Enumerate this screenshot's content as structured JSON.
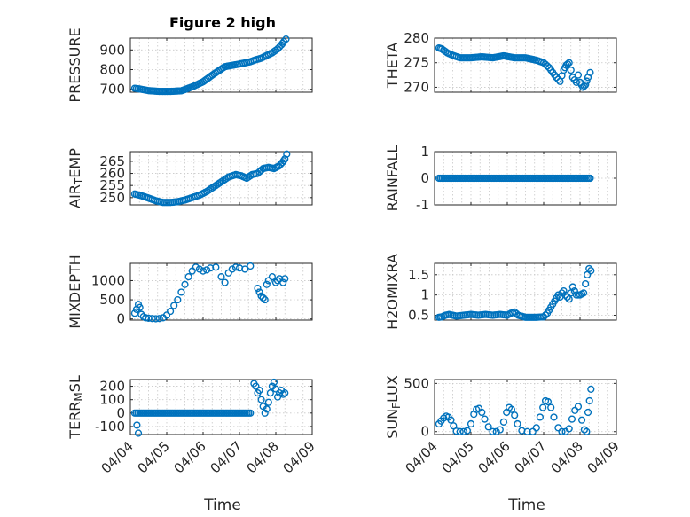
{
  "figure_title": "Figure 2 high",
  "x_axis_label": "Time",
  "x_tick_labels": [
    "04/04",
    "04/05",
    "04/06",
    "04/07",
    "04/08",
    "04/09"
  ],
  "marker_color": "#0072bd",
  "chart_data": [
    {
      "type": "scatter",
      "id": "pressure",
      "title": "Figure 2 high",
      "ylabel": "PRESSURE",
      "xlabel": "Time",
      "xlim": [
        0,
        5
      ],
      "ylim": [
        685,
        960
      ],
      "yticks": [
        700,
        800,
        900
      ],
      "ytick_labels": [
        "700",
        "800",
        "900"
      ],
      "series": [
        {
          "name": "PRESSURE",
          "type": "line",
          "x": [
            0.12,
            0.3,
            0.5,
            0.8,
            1.1,
            1.4,
            1.7,
            2.0,
            2.3,
            2.6,
            2.9,
            3.1,
            3.3,
            3.45,
            3.6,
            3.75,
            3.9,
            4.05,
            4.15,
            4.22,
            4.28
          ],
          "y": [
            705,
            700,
            693,
            689,
            689,
            692,
            712,
            738,
            778,
            815,
            825,
            832,
            840,
            850,
            858,
            872,
            885,
            905,
            925,
            942,
            955
          ]
        }
      ]
    },
    {
      "type": "scatter",
      "id": "theta",
      "title": "",
      "ylabel": "THETA",
      "xlabel": "Time",
      "xlim": [
        0,
        5
      ],
      "ylim": [
        269,
        280
      ],
      "yticks": [
        270,
        275,
        280
      ],
      "ytick_labels": [
        "270",
        "275",
        "280"
      ],
      "series": [
        {
          "name": "THETA",
          "type": "line",
          "x": [
            0.12,
            0.2,
            0.35,
            0.5,
            0.7,
            1.0,
            1.3,
            1.6,
            1.9,
            2.2,
            2.5,
            2.8,
            3.0,
            3.15,
            3.25,
            3.35,
            3.45,
            3.55,
            3.62,
            3.7,
            3.8,
            3.9,
            3.95,
            4.0,
            4.08,
            4.15,
            4.22,
            4.28
          ],
          "y": [
            278,
            277.8,
            277,
            276.5,
            276,
            276,
            276.2,
            276,
            276.4,
            276,
            276,
            275.5,
            275,
            274,
            273,
            272,
            271.2,
            273.5,
            274.5,
            275,
            272,
            271,
            272.5,
            271,
            270,
            270.5,
            272,
            273
          ]
        }
      ]
    },
    {
      "type": "scatter",
      "id": "air_temp",
      "title": "",
      "ylabel": "AIR_TEMP",
      "xlabel": "Time",
      "xlim": [
        0,
        5
      ],
      "ylim": [
        247,
        269
      ],
      "yticks": [
        250,
        255,
        260,
        265
      ],
      "ytick_labels": [
        "250",
        "255",
        "260",
        "265"
      ],
      "series": [
        {
          "name": "AIR_TEMP",
          "type": "line",
          "x": [
            0.12,
            0.3,
            0.5,
            0.7,
            0.9,
            1.1,
            1.3,
            1.5,
            1.7,
            1.9,
            2.1,
            2.3,
            2.5,
            2.7,
            2.9,
            3.05,
            3.2,
            3.35,
            3.5,
            3.65,
            3.8,
            3.95,
            4.08,
            4.18,
            4.25,
            4.3
          ],
          "y": [
            251.5,
            250.8,
            249.8,
            248.7,
            248,
            248,
            248.3,
            249,
            250,
            251,
            252.5,
            254.5,
            256.5,
            258.5,
            259.5,
            259,
            258,
            259.5,
            260,
            262,
            262.5,
            262,
            263,
            264.5,
            266,
            268
          ]
        }
      ]
    },
    {
      "type": "scatter",
      "id": "rainfall",
      "title": "",
      "ylabel": "RAINFALL",
      "xlabel": "Time",
      "xlim": [
        0,
        5
      ],
      "ylim": [
        -1,
        1
      ],
      "yticks": [
        -1,
        0,
        1
      ],
      "ytick_labels": [
        "-1",
        "0",
        "1"
      ],
      "series": [
        {
          "name": "RAINFALL",
          "type": "line",
          "x": [
            0.12,
            4.28
          ],
          "y": [
            0,
            0
          ]
        }
      ]
    },
    {
      "type": "scatter",
      "id": "mixdepth",
      "title": "",
      "ylabel": "MIXDEPTH",
      "xlabel": "Time",
      "xlim": [
        0,
        5
      ],
      "ylim": [
        -30,
        1450
      ],
      "yticks": [
        0,
        500,
        1000
      ],
      "ytick_labels": [
        "0",
        "500",
        "1000"
      ],
      "series": [
        {
          "name": "MIXDEPTH",
          "type": "points",
          "x": [
            0.12,
            0.17,
            0.22,
            0.26,
            0.3,
            0.36,
            0.42,
            0.5,
            0.6,
            0.7,
            0.8,
            0.9,
            1.0,
            1.1,
            1.2,
            1.3,
            1.4,
            1.5,
            1.6,
            1.7,
            1.8,
            1.9,
            2.0,
            2.1,
            2.2,
            2.35,
            2.5,
            2.6,
            2.7,
            2.8,
            2.9,
            3.0,
            3.15,
            3.3,
            3.5,
            3.55,
            3.6,
            3.65,
            3.7,
            3.75,
            3.8,
            3.9,
            4.0,
            4.05,
            4.1,
            4.2,
            4.25
          ],
          "y": [
            150,
            250,
            380,
            300,
            120,
            60,
            30,
            20,
            10,
            5,
            10,
            30,
            100,
            200,
            350,
            500,
            700,
            900,
            1100,
            1250,
            1350,
            1300,
            1250,
            1280,
            1330,
            1350,
            1100,
            950,
            1200,
            1300,
            1350,
            1330,
            1300,
            1380,
            800,
            700,
            600,
            550,
            500,
            900,
            1000,
            1100,
            950,
            1000,
            1050,
            950,
            1050
          ]
        }
      ]
    },
    {
      "type": "scatter",
      "id": "h2omixra",
      "title": "",
      "ylabel": "H2OMIXRA",
      "xlabel": "Time",
      "xlim": [
        0,
        5
      ],
      "ylim": [
        0.38,
        1.78
      ],
      "yticks": [
        0.5,
        1,
        1.5
      ],
      "ytick_labels": [
        "0.5",
        "1",
        "1.5"
      ],
      "series": [
        {
          "name": "H2OMIXRA",
          "type": "line",
          "x": [
            0.12,
            0.2,
            0.3,
            0.4,
            0.5,
            0.6,
            0.8,
            1.0,
            1.2,
            1.4,
            1.6,
            1.8,
            2.0,
            2.1,
            2.2,
            2.3,
            2.5,
            2.8,
            3.0,
            3.1,
            3.2,
            3.3,
            3.4,
            3.45,
            3.5,
            3.55,
            3.6,
            3.7,
            3.8,
            3.9,
            4.0,
            4.1,
            4.2,
            4.25,
            4.3
          ],
          "y": [
            0.45,
            0.46,
            0.5,
            0.52,
            0.5,
            0.48,
            0.5,
            0.52,
            0.5,
            0.52,
            0.5,
            0.52,
            0.5,
            0.55,
            0.58,
            0.5,
            0.45,
            0.45,
            0.46,
            0.55,
            0.7,
            0.85,
            1.0,
            0.95,
            1.05,
            1.1,
            1.0,
            0.9,
            1.2,
            1.0,
            1.0,
            1.05,
            1.5,
            1.65,
            1.6
          ]
        }
      ]
    },
    {
      "type": "scatter",
      "id": "terr_msl",
      "title": "",
      "ylabel": "TERR_MSL",
      "xlabel": "Time",
      "xlim": [
        0,
        5
      ],
      "ylim": [
        -160,
        250
      ],
      "yticks": [
        -100,
        0,
        100,
        200
      ],
      "ytick_labels": [
        "-100",
        "0",
        "100",
        "200"
      ],
      "series": [
        {
          "name": "TERR_MSL",
          "type": "line",
          "x": [
            0.12,
            3.3
          ],
          "y": [
            0,
            0
          ]
        },
        {
          "name": "TERR_MSL_scatter",
          "type": "points",
          "x": [
            0.18,
            0.22,
            3.4,
            3.45,
            3.5,
            3.55,
            3.6,
            3.65,
            3.7,
            3.75,
            3.8,
            3.85,
            3.9,
            3.95,
            4.0,
            4.05,
            4.1,
            4.15,
            4.2,
            4.25
          ],
          "y": [
            -90,
            -150,
            220,
            200,
            150,
            170,
            100,
            50,
            0,
            30,
            80,
            150,
            200,
            230,
            180,
            120,
            150,
            170,
            140,
            150
          ]
        }
      ]
    },
    {
      "type": "scatter",
      "id": "sun_flux",
      "title": "",
      "ylabel": "SUN_FLUX",
      "xlabel": "Time",
      "xlim": [
        0,
        5
      ],
      "ylim": [
        -30,
        540
      ],
      "yticks": [
        0,
        500
      ],
      "ytick_labels": [
        "0",
        "500"
      ],
      "series": [
        {
          "name": "SUN_FLUX",
          "type": "points",
          "x": [
            0.12,
            0.18,
            0.25,
            0.32,
            0.38,
            0.45,
            0.52,
            0.6,
            0.7,
            0.8,
            0.9,
            1.0,
            1.08,
            1.15,
            1.22,
            1.3,
            1.38,
            1.48,
            1.6,
            1.7,
            1.8,
            1.9,
            1.98,
            2.05,
            2.12,
            2.2,
            2.28,
            2.4,
            2.55,
            2.7,
            2.8,
            2.9,
            2.98,
            3.05,
            3.12,
            3.2,
            3.28,
            3.4,
            3.5,
            3.6,
            3.7,
            3.78,
            3.86,
            3.95,
            4.05,
            4.12,
            4.18,
            4.22,
            4.26,
            4.3
          ],
          "y": [
            80,
            110,
            140,
            160,
            150,
            120,
            60,
            5,
            0,
            0,
            10,
            80,
            180,
            230,
            240,
            200,
            130,
            50,
            0,
            0,
            20,
            100,
            200,
            250,
            230,
            170,
            80,
            10,
            0,
            0,
            40,
            150,
            250,
            320,
            310,
            250,
            150,
            40,
            0,
            0,
            30,
            130,
            220,
            260,
            120,
            20,
            0,
            200,
            320,
            440
          ]
        }
      ]
    }
  ]
}
